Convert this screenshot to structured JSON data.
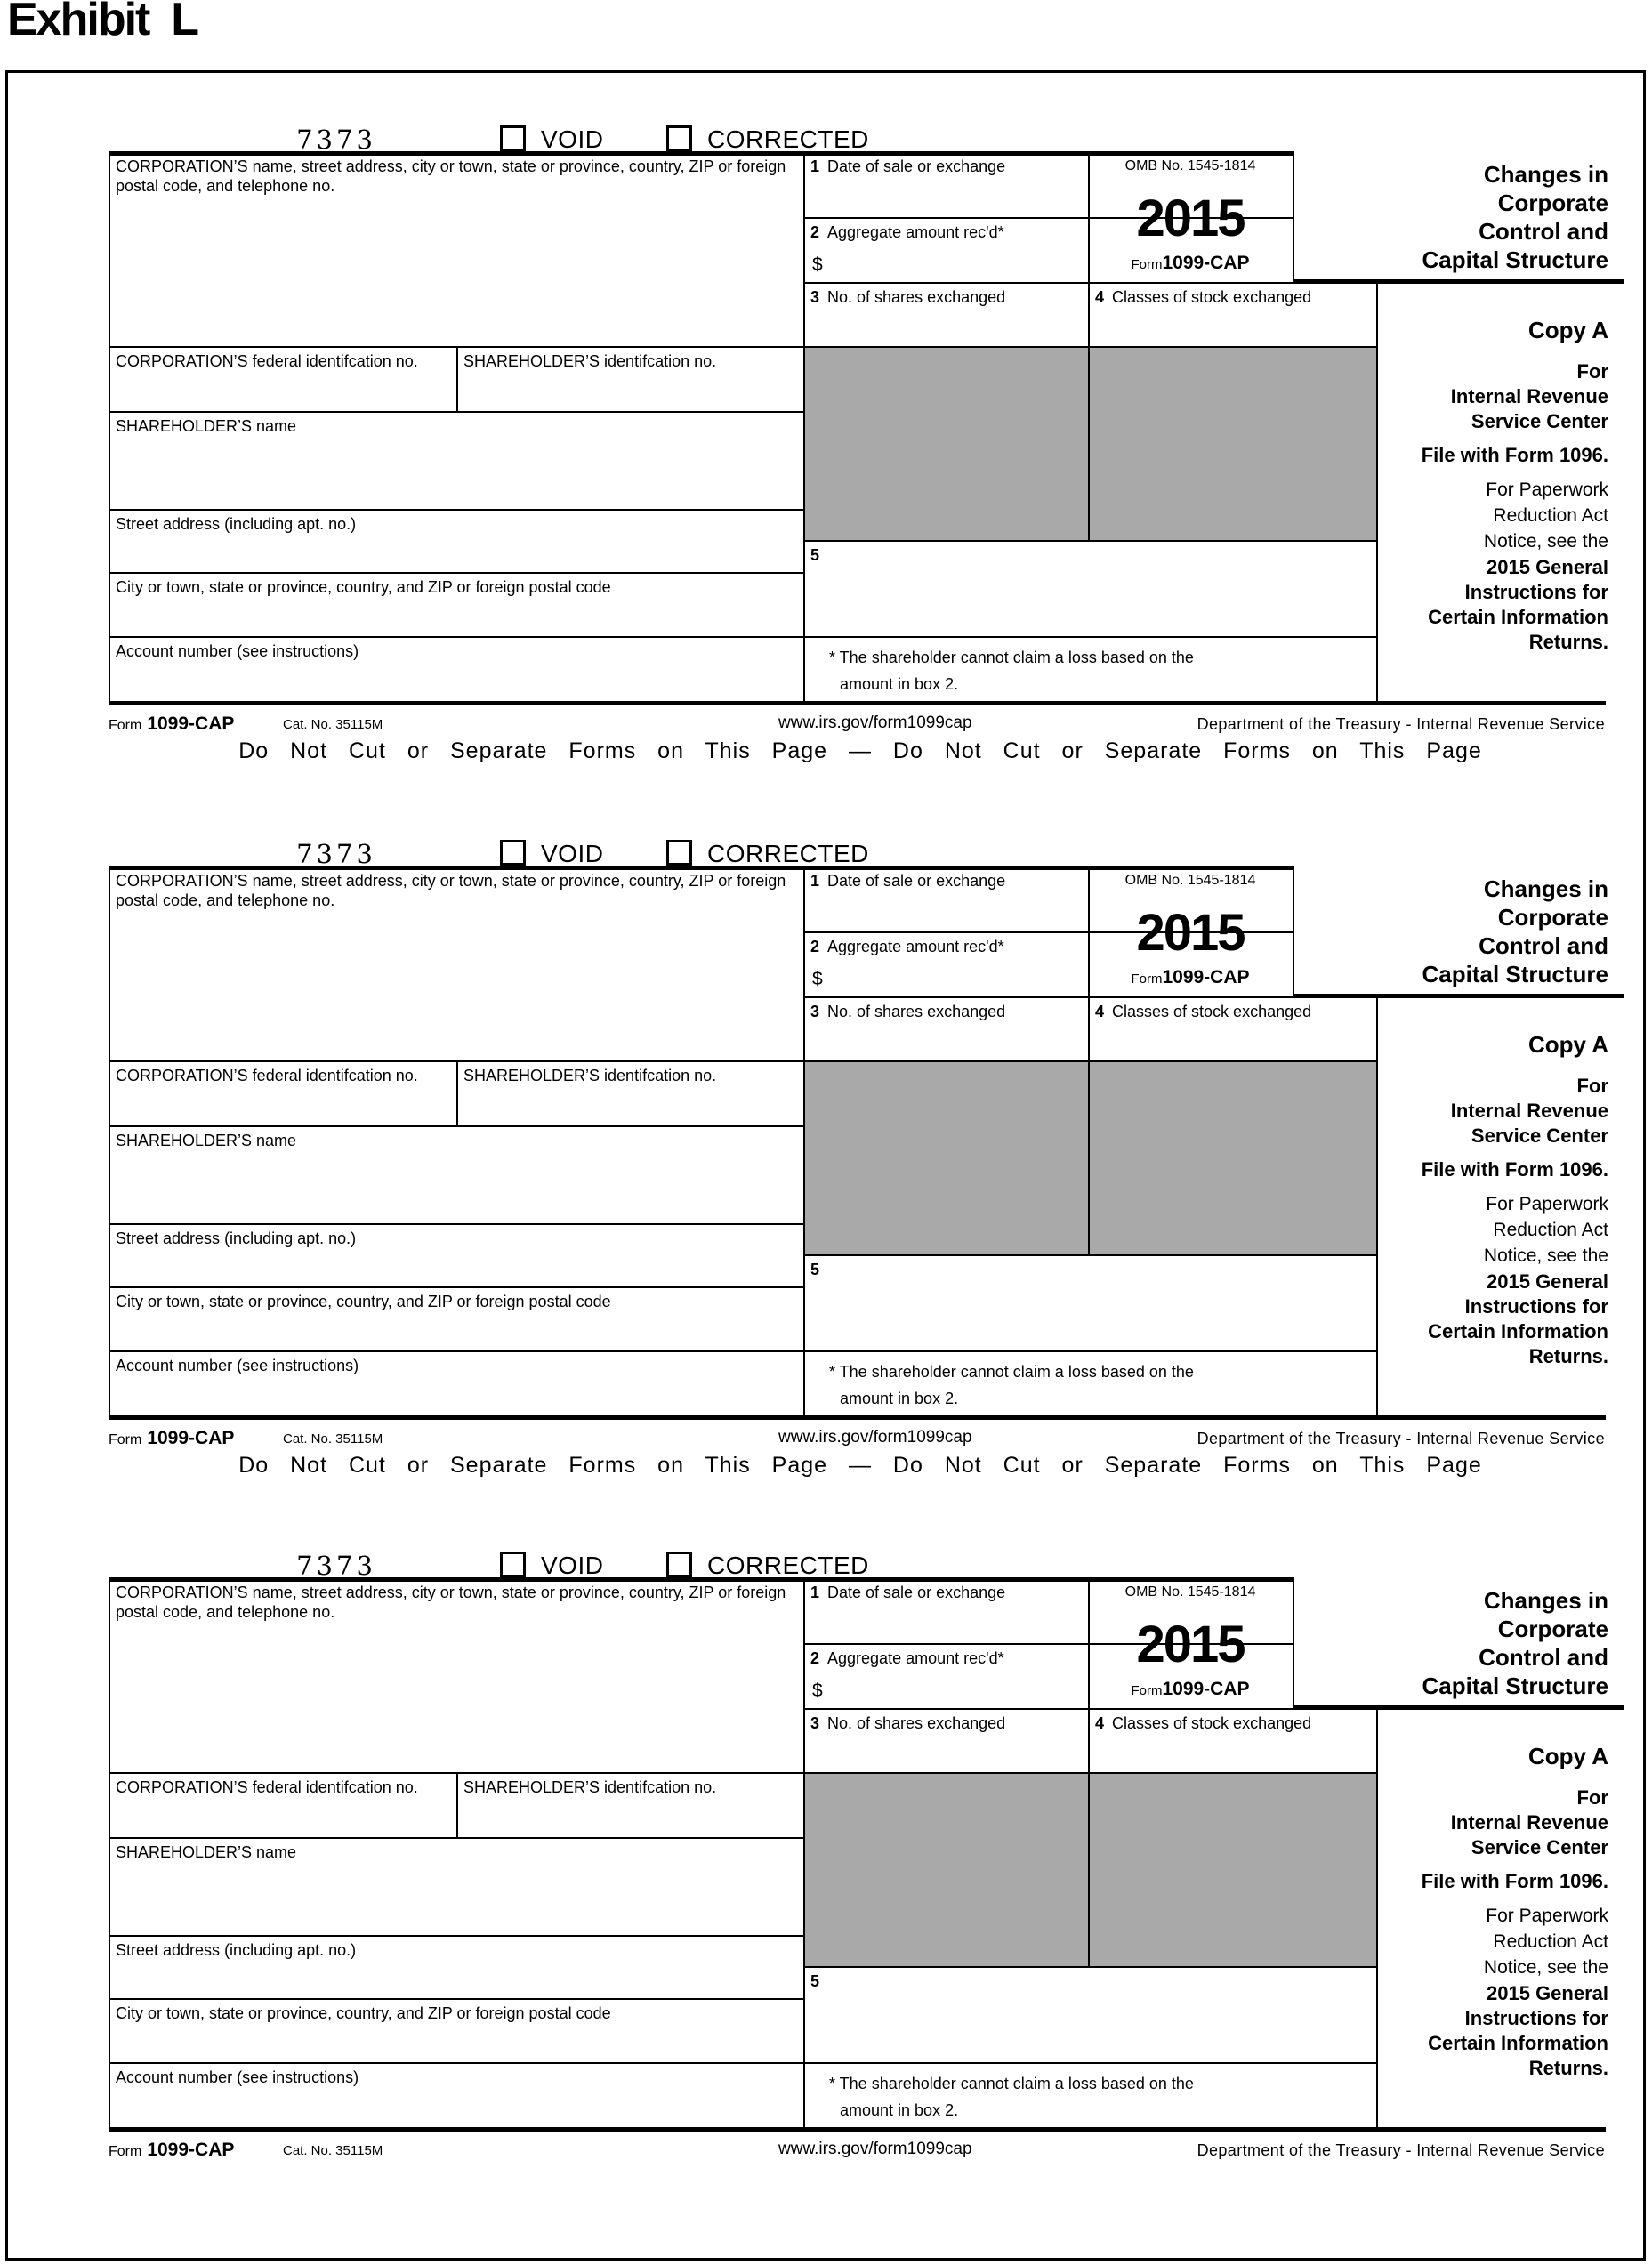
{
  "page": {
    "title": "Exhibit  L"
  },
  "form": {
    "code": "7373",
    "void_label": "VOID",
    "corrected_label": "CORRECTED",
    "corp_name_label": "CORPORATION’S name, street address, city or town, state or province, country, ZIP or foreign postal code, and telephone no.",
    "box1": {
      "num": "1",
      "label": "Date of sale or exchange"
    },
    "box2": {
      "num": "2",
      "label": "Aggregate amount rec'd*",
      "currency": "$"
    },
    "box3": {
      "num": "3",
      "label": "No. of shares exchanged"
    },
    "box4": {
      "num": "4",
      "label": "Classes of stock exchanged"
    },
    "box5": {
      "num": "5"
    },
    "omb": "OMB No. 1545-1814",
    "year": "2015",
    "form_word": "Form",
    "form_number": "1099-CAP",
    "title_lines": [
      "Changes in",
      "Corporate",
      "Control and",
      "Capital Structure"
    ],
    "copy": "Copy A",
    "for_lines": [
      "For",
      "Internal Revenue",
      "Service Center"
    ],
    "file_line": "File with Form 1096.",
    "pra_lines": [
      "For Paperwork",
      "Reduction Act",
      "Notice, see the"
    ],
    "gi_lines": [
      "2015 General",
      "Instructions for",
      "Certain Information",
      "Returns."
    ],
    "corp_id_label": "CORPORATION’S federal identifcation no.",
    "sh_id_label": "SHAREHOLDER’S identifcation no.",
    "sh_name_label": "SHAREHOLDER’S name",
    "street_label": "Street address (including apt. no.)",
    "city_label": "City or town, state or province, country, and ZIP or foreign postal code",
    "account_label": "Account number (see instructions)",
    "note_line1": "* The shareholder cannot claim a loss based on the",
    "note_line2": "amount in box 2.",
    "footer": {
      "form_word": "Form",
      "form_number": "1099-CAP",
      "cat": "Cat. No. 35115M",
      "url": "www.irs.gov/form1099cap",
      "dept": "Department of the Treasury - Internal Revenue Service"
    },
    "separator": "Do Not Cut or Separate Forms on This Page — Do Not Cut or Separate Forms on This Page"
  },
  "colors": {
    "gray_fill": "#a9a9a9",
    "line": "#000000"
  },
  "instances": 3
}
